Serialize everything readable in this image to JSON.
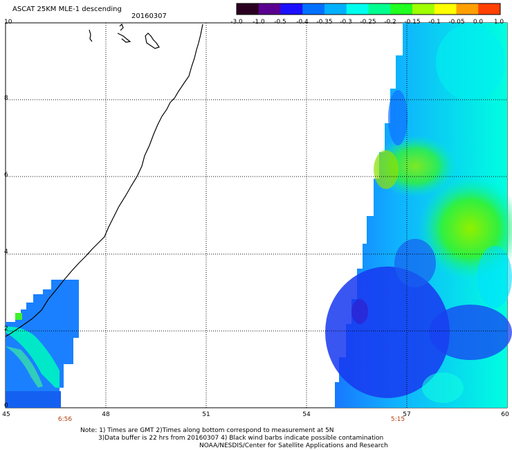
{
  "title": "ASCAT 25KM MLE-1 descending",
  "date": "20160307",
  "colorbar": {
    "labels": [
      "-3.0",
      "-1.0",
      "-0.5",
      "-0.4",
      "-0.35",
      "-0.3",
      "-0.25",
      "-0.2",
      "-0.15",
      "-0.1",
      "-0.05",
      "0.0",
      "1.0"
    ],
    "colors": [
      "#2a0020",
      "#5a0090",
      "#1a10ff",
      "#0070ff",
      "#00b0ff",
      "#00ffee",
      "#00ff90",
      "#20ff20",
      "#a0ff00",
      "#ffff00",
      "#ffa000",
      "#ff4000"
    ]
  },
  "axes": {
    "y_ticks": [
      "0",
      "2",
      "4",
      "6",
      "8",
      "10"
    ],
    "x_ticks": [
      "45",
      "48",
      "51",
      "54",
      "57",
      "60"
    ],
    "time_labels": [
      {
        "text": "6:56",
        "lon": 46.7
      },
      {
        "text": "5:15",
        "lon": 56.8
      }
    ]
  },
  "notes": {
    "line1": "Note: 1) Times are GMT 2)Times along bottom correspond to measurement at 5N",
    "line2": "3)Data buffer is 22 hrs from 20160307 4) Black wind barbs indicate possible contamination",
    "line3": "NOAA/NESDIS/Center for Satellite Applications and Research"
  }
}
